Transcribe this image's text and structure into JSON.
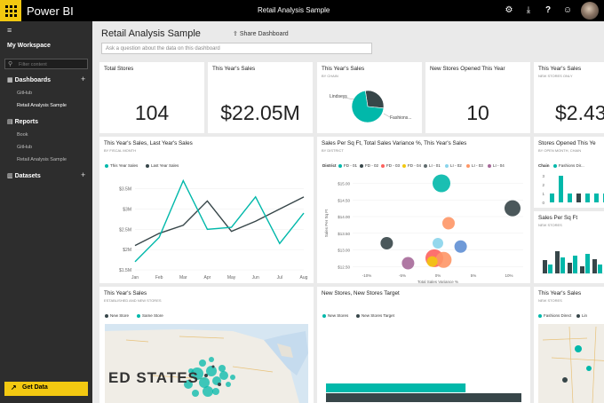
{
  "app": {
    "name": "Power BI",
    "document_title": "Retail Analysis Sample"
  },
  "sidebar": {
    "my_workspace": "My Workspace",
    "filter_placeholder": "Filter content",
    "dashboards": {
      "title": "Dashboards",
      "items": [
        "GitHub",
        "Retail Analysis Sample"
      ]
    },
    "reports": {
      "title": "Reports",
      "items": [
        "Book",
        "GitHub",
        "Retail Analysis Sample"
      ]
    },
    "datasets": {
      "title": "Datasets"
    },
    "get_data": "Get Data"
  },
  "dashboard": {
    "title": "Retail Analysis Sample",
    "share": "Share Dashboard",
    "qa_placeholder": "Ask a question about the data on this dashboard"
  },
  "tiles": {
    "total_stores": {
      "title": "Total Stores",
      "value": "104"
    },
    "sales": {
      "title": "This Year's Sales",
      "value": "$22.05M"
    },
    "sales_chain": {
      "title": "This Year's Sales",
      "subtitle": "BY CHAIN",
      "labels": [
        "Lindseys",
        "Fashions..."
      ]
    },
    "new_stores": {
      "title": "New Stores Opened This Year",
      "value": "10"
    },
    "sales_new": {
      "title": "This Year's Sales",
      "subtitle": "NEW STORES ONLY",
      "value": "$2.43"
    },
    "line": {
      "title": "This Year's Sales, Last Year's Sales",
      "subtitle": "BY FISCAL MONTH",
      "legend": [
        "This Year Sales",
        "Last Year Sales"
      ]
    },
    "bubble": {
      "title": "Sales Per Sq Ft, Total Sales Variance %, This Year's Sales",
      "subtitle": "BY DISTRICT",
      "legend_label": "District",
      "legend": [
        "FD - 01",
        "FD - 02",
        "FD - 03",
        "FD - 04",
        "LI - 01",
        "LI - 02",
        "LI - 03",
        "LI - 04"
      ]
    },
    "stores_opened": {
      "title": "Stores Opened This Ye",
      "subtitle": "BY OPEN MONTH, CHAIN",
      "legend_label": "Chain",
      "legend": [
        "Fashions Dir..."
      ]
    },
    "sqft": {
      "title": "Sales Per Sq Ft",
      "subtitle": "NEW STORES"
    },
    "map": {
      "title": "This Year's Sales",
      "subtitle": "ESTABLISHED AND NEW STORES",
      "legend": [
        "New Store",
        "Same Store"
      ],
      "map_label": "ED STATES"
    },
    "target": {
      "title": "New Stores, New Stores Target",
      "legend": [
        "New Stores",
        "New Stores Target"
      ]
    },
    "map2": {
      "title": "This Year's Sales",
      "subtitle": "NEW STORES",
      "legend": [
        "Fashions Direct",
        "Lin"
      ]
    }
  },
  "chart_data": [
    {
      "type": "line",
      "title": "This Year's Sales, Last Year's Sales",
      "categories": [
        "Jan",
        "Feb",
        "Mar",
        "Apr",
        "May",
        "Jun",
        "Jul",
        "Aug"
      ],
      "y_ticks": [
        "$3.5M",
        "$3M",
        "$2.5M",
        "$2M",
        "$1.5M"
      ],
      "ylim": [
        1.5,
        3.8
      ],
      "series": [
        {
          "name": "This Year Sales",
          "values": [
            1.7,
            2.3,
            3.7,
            2.5,
            2.55,
            3.3,
            2.15,
            2.9
          ],
          "color": "#01b8aa"
        },
        {
          "name": "Last Year Sales",
          "values": [
            2.1,
            2.4,
            2.6,
            3.2,
            2.45,
            2.7,
            3.0,
            3.3
          ],
          "color": "#374649"
        }
      ]
    },
    {
      "type": "scatter",
      "title": "Sales Per Sq Ft, Total Sales Variance %, This Year's Sales",
      "xlabel": "Total Sales Variance %",
      "ylabel": "Sales Per Sq Ft",
      "x_ticks": [
        "-10%",
        "-5%",
        "0%",
        "5%",
        "10%"
      ],
      "y_ticks": [
        "$15.00",
        "$14.50",
        "$14.00",
        "$13.50",
        "$13.00",
        "$12.50"
      ],
      "xlim": [
        -12,
        12
      ],
      "ylim": [
        12.4,
        15.2
      ],
      "points": [
        {
          "x": 0.5,
          "y": 15.0,
          "r": 10,
          "color": "#01b8aa"
        },
        {
          "x": 10.5,
          "y": 14.25,
          "r": 9,
          "color": "#374649"
        },
        {
          "x": 1.5,
          "y": 13.8,
          "r": 7,
          "color": "#fe9666"
        },
        {
          "x": -7.2,
          "y": 13.2,
          "r": 7,
          "color": "#374649"
        },
        {
          "x": 0.0,
          "y": 13.2,
          "r": 6,
          "color": "#8ad4eb"
        },
        {
          "x": 3.2,
          "y": 13.1,
          "r": 7,
          "color": "#5f8fd4"
        },
        {
          "x": -0.5,
          "y": 12.75,
          "r": 10,
          "color": "#fd625e"
        },
        {
          "x": 0.8,
          "y": 12.7,
          "r": 9,
          "color": "#fe9666"
        },
        {
          "x": -4.2,
          "y": 12.6,
          "r": 7,
          "color": "#a66999"
        },
        {
          "x": -0.8,
          "y": 12.65,
          "r": 6,
          "color": "#f2c80f"
        }
      ]
    },
    {
      "type": "pie",
      "title": "This Year's Sales",
      "slices": [
        {
          "label": "Lindseys",
          "value": 29,
          "color": "#374649"
        },
        {
          "label": "Fashions...",
          "value": 71,
          "color": "#01b8aa"
        }
      ]
    },
    {
      "type": "bar",
      "title": "Stores Opened This Ye",
      "y_ticks": [
        "3",
        "2",
        "1",
        "0"
      ],
      "ylim": [
        0,
        3
      ],
      "series": [
        {
          "name": "Fashions Dir...",
          "values": [
            1,
            3,
            1,
            0,
            1,
            1,
            1,
            1
          ],
          "color": "#01b8aa"
        },
        {
          "name": "",
          "values": [
            0,
            0,
            0,
            1,
            0,
            0,
            0,
            0
          ],
          "color": "#374649"
        }
      ]
    },
    {
      "type": "bar",
      "title": "New Stores, New Stores Target",
      "categories": [
        ""
      ],
      "series": [
        {
          "name": "New Stores",
          "values": [
            10
          ],
          "color": "#01b8aa"
        },
        {
          "name": "New Stores Target",
          "values": [
            14
          ],
          "color": "#374649"
        }
      ]
    }
  ]
}
